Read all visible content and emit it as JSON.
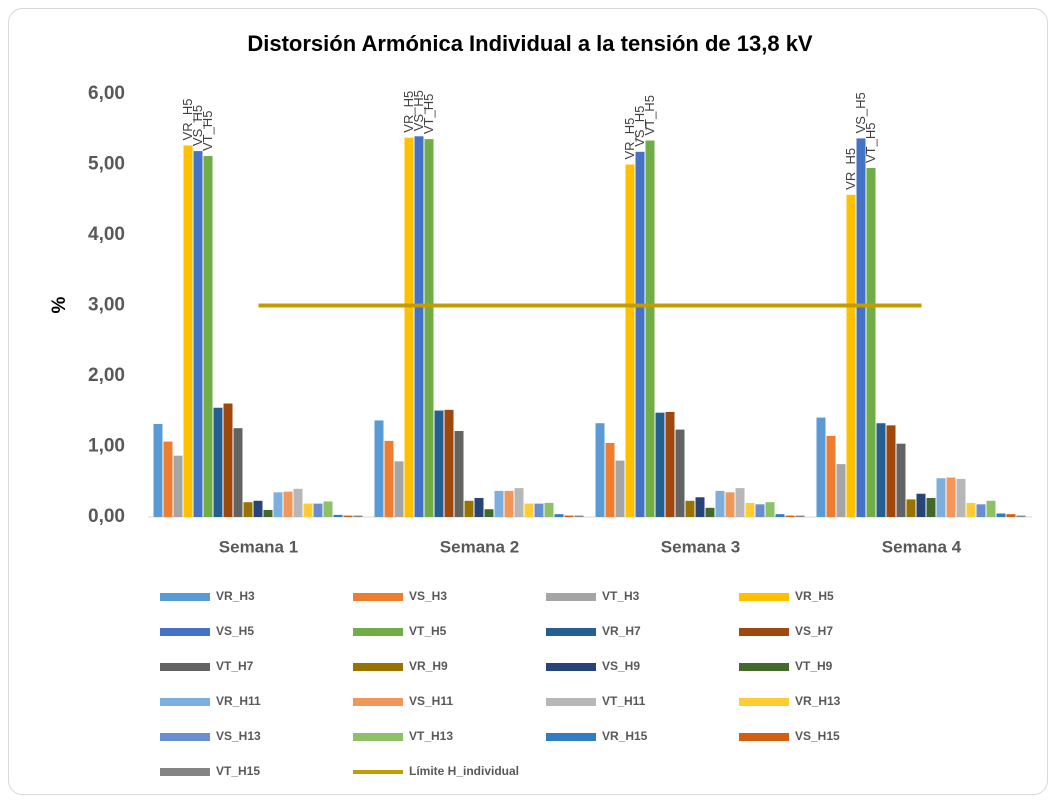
{
  "chart_data": {
    "type": "bar",
    "title": "Distorsión Armónica Individual a la tensión de 13,8 kV",
    "y_label": "%",
    "categories": [
      "Semana 1",
      "Semana 2",
      "Semana 3",
      "Semana 4"
    ],
    "ylim": [
      0,
      6
    ],
    "yticks": [
      {
        "value": 0,
        "label": "0,00"
      },
      {
        "value": 1,
        "label": "1,00"
      },
      {
        "value": 2,
        "label": "2,00"
      },
      {
        "value": 3,
        "label": "3,00"
      },
      {
        "value": 4,
        "label": "4,00"
      },
      {
        "value": 5,
        "label": "5,00"
      },
      {
        "value": 6,
        "label": "6,00"
      }
    ],
    "grid": false,
    "legend": "bottom",
    "series": [
      {
        "name": "VR_H3",
        "color": "#5b9bd5",
        "values": [
          1.32,
          1.37,
          1.33,
          1.41
        ]
      },
      {
        "name": "VS_H3",
        "color": "#ed7d31",
        "values": [
          1.07,
          1.08,
          1.05,
          1.15
        ]
      },
      {
        "name": "VT_H3",
        "color": "#a5a5a5",
        "values": [
          0.87,
          0.79,
          0.8,
          0.75
        ]
      },
      {
        "name": "VR_H5",
        "color": "#ffc000",
        "values": [
          5.27,
          5.38,
          5.0,
          4.57
        ],
        "data_labels": true
      },
      {
        "name": "VS_H5",
        "color": "#4472c4",
        "values": [
          5.19,
          5.4,
          5.18,
          5.37
        ],
        "data_labels": true
      },
      {
        "name": "VT_H5",
        "color": "#70ad47",
        "values": [
          5.12,
          5.36,
          5.34,
          4.95
        ],
        "data_labels": true
      },
      {
        "name": "VR_H7",
        "color": "#255e91",
        "values": [
          1.55,
          1.51,
          1.48,
          1.33
        ]
      },
      {
        "name": "VS_H7",
        "color": "#9e480e",
        "values": [
          1.61,
          1.52,
          1.49,
          1.3
        ]
      },
      {
        "name": "VT_H7",
        "color": "#636363",
        "values": [
          1.26,
          1.22,
          1.24,
          1.04
        ]
      },
      {
        "name": "VR_H9",
        "color": "#997300",
        "values": [
          0.21,
          0.23,
          0.23,
          0.25
        ]
      },
      {
        "name": "VS_H9",
        "color": "#264478",
        "values": [
          0.23,
          0.27,
          0.28,
          0.33
        ]
      },
      {
        "name": "VT_H9",
        "color": "#43682b",
        "values": [
          0.1,
          0.11,
          0.13,
          0.27
        ]
      },
      {
        "name": "VR_H11",
        "color": "#7cafdd",
        "values": [
          0.35,
          0.37,
          0.37,
          0.55
        ]
      },
      {
        "name": "VS_H11",
        "color": "#f1975a",
        "values": [
          0.36,
          0.37,
          0.35,
          0.56
        ]
      },
      {
        "name": "VT_H11",
        "color": "#b7b7b7",
        "values": [
          0.4,
          0.41,
          0.41,
          0.54
        ]
      },
      {
        "name": "VR_H13",
        "color": "#ffcd33",
        "values": [
          0.19,
          0.19,
          0.2,
          0.2
        ]
      },
      {
        "name": "VS_H13",
        "color": "#698ed0",
        "values": [
          0.19,
          0.19,
          0.18,
          0.18
        ]
      },
      {
        "name": "VT_H13",
        "color": "#8cc168",
        "values": [
          0.22,
          0.2,
          0.21,
          0.23
        ]
      },
      {
        "name": "VR_H15",
        "color": "#327dc2",
        "values": [
          0.03,
          0.04,
          0.04,
          0.05
        ]
      },
      {
        "name": "VS_H15",
        "color": "#d26012",
        "values": [
          0.02,
          0.02,
          0.02,
          0.04
        ]
      },
      {
        "name": "VT_H15",
        "color": "#848484",
        "values": [
          0.02,
          0.02,
          0.02,
          0.02
        ]
      },
      {
        "name": "Límite H_individual",
        "color": "#c49b00",
        "type": "line",
        "values": [
          3,
          3,
          3,
          3
        ]
      }
    ]
  }
}
